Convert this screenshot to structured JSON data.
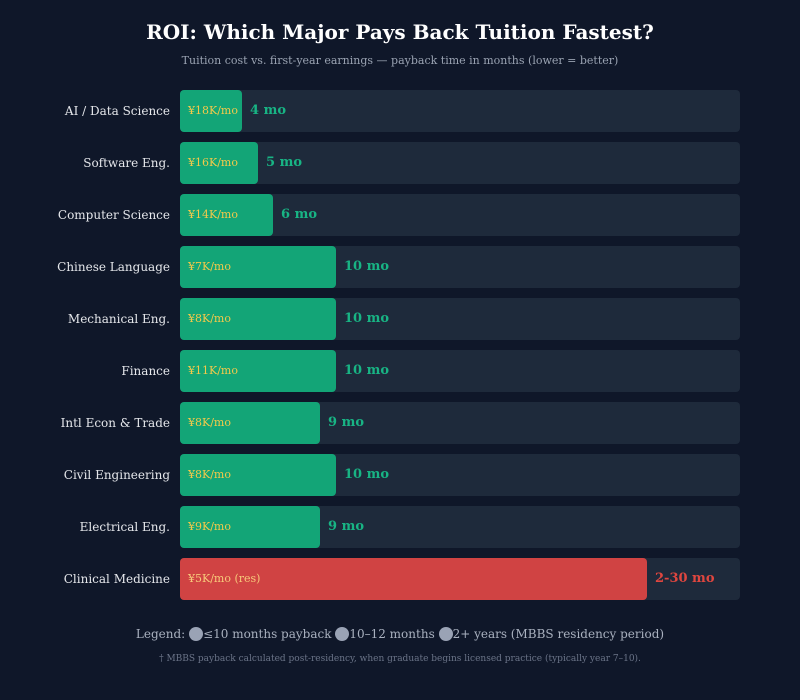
{
  "title": "ROI: Which Major Pays Back Tuition Fastest?",
  "subtitle": "Tuition cost vs. first-year earnings — payback time in months (lower = better)",
  "colors": {
    "background": "#0f1729",
    "track": "#1e2a3b",
    "fast_bar": "#13a577",
    "residency_bar": "#d04343",
    "earnings_text": "#f3c94a",
    "payback_text": "#18b484",
    "residency_payback_text": "#e0463f",
    "legend_swatch": "#9aa3b5"
  },
  "chart_data": {
    "type": "bar",
    "orientation": "horizontal",
    "categories": [
      "AI / Data Science",
      "Software Eng.",
      "Computer Science",
      "Chinese Language",
      "Mechanical Eng.",
      "Finance",
      "Intl Econ & Trade",
      "Civil Engineering",
      "Electrical Eng.",
      "Clinical Medicine"
    ],
    "values": [
      4,
      5,
      6,
      10,
      10,
      10,
      9,
      10,
      9,
      30
    ],
    "earnings_labels": [
      "¥18K/mo",
      "¥16K/mo",
      "¥14K/mo",
      "¥7K/mo",
      "¥8K/mo",
      "¥11K/mo",
      "¥8K/mo",
      "¥8K/mo",
      "¥9K/mo",
      "¥5K/mo (res)"
    ],
    "payback_labels": [
      "4 mo",
      "5 mo",
      "6 mo",
      "10 mo",
      "10 mo",
      "10 mo",
      "9 mo",
      "10 mo",
      "9 mo",
      "2-30 mo"
    ],
    "bar_group": [
      "fast",
      "fast",
      "fast",
      "fast",
      "fast",
      "fast",
      "fast",
      "fast",
      "fast",
      "residency"
    ],
    "xlim": [
      0,
      36
    ],
    "grid": false
  },
  "legend": {
    "prefix": "Legend:",
    "items": [
      "≤10 months payback",
      "10–12 months",
      "2+ years (MBBS residency period)"
    ]
  },
  "footnote": "† MBBS payback calculated post-residency, when graduate begins licensed practice (typically year 7–10)."
}
